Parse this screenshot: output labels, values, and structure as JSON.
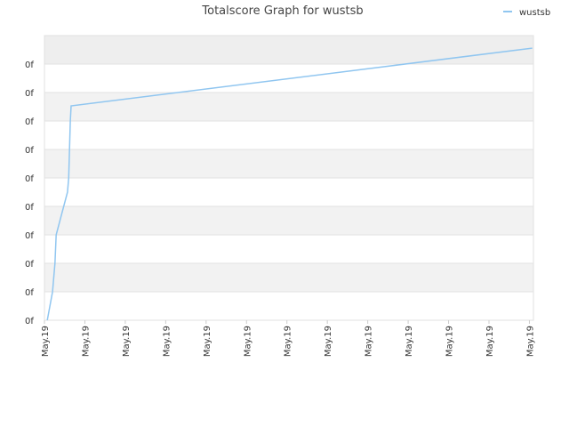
{
  "chart_data": {
    "type": "line",
    "title": "Totalscore Graph for wustsb",
    "series": [
      {
        "name": "wustsb",
        "color": "#90c6f0",
        "x": [
          0.07,
          0.2,
          0.26,
          0.29,
          0.57,
          0.6,
          0.64,
          0.66,
          12.07
        ],
        "values": [
          0,
          1,
          2,
          3,
          4.5,
          5,
          7,
          7.53,
          9.56
        ]
      }
    ],
    "xlim": [
      0,
      12.1
    ],
    "xticks": [
      {
        "value": 0,
        "label": "May.19"
      },
      {
        "value": 1,
        "label": "May.19"
      },
      {
        "value": 2,
        "label": "May.19"
      },
      {
        "value": 3,
        "label": "May.19"
      },
      {
        "value": 4,
        "label": "May.19"
      },
      {
        "value": 5,
        "label": "May.19"
      },
      {
        "value": 6,
        "label": "May.19"
      },
      {
        "value": 7,
        "label": "May.19"
      },
      {
        "value": 8,
        "label": "May.19"
      },
      {
        "value": 9,
        "label": "May.19"
      },
      {
        "value": 10,
        "label": "May.19"
      },
      {
        "value": 11,
        "label": "May.19"
      },
      {
        "value": 12,
        "label": "May.19"
      }
    ],
    "ylim": [
      0,
      10
    ],
    "yticks": [
      {
        "value": 0,
        "label": "0f"
      },
      {
        "value": 1,
        "label": "0f"
      },
      {
        "value": 2,
        "label": "0f"
      },
      {
        "value": 3,
        "label": "0f"
      },
      {
        "value": 4,
        "label": "0f"
      },
      {
        "value": 5,
        "label": "0f"
      },
      {
        "value": 6,
        "label": "0f"
      },
      {
        "value": 7,
        "label": "0f"
      },
      {
        "value": 8,
        "label": "0f"
      },
      {
        "value": 9,
        "label": "0f"
      }
    ],
    "grid": true,
    "legend": "top-right"
  }
}
